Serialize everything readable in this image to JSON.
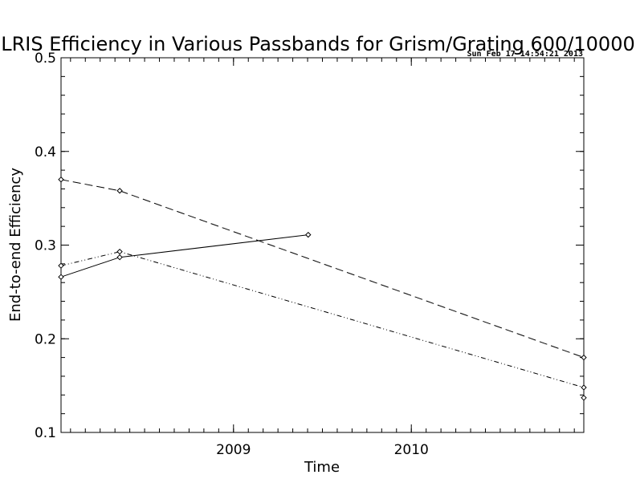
{
  "chart_data": {
    "type": "line",
    "title": "LRIS Efficiency in Various Passbands for Grism/Grating 600/10000",
    "timestamp": "Sun Feb 17 14:54:21 2013",
    "xlabel": "Time",
    "ylabel": "End-to-end Efficiency",
    "xlim": [
      2008.03,
      2010.97
    ],
    "ylim": [
      0.1,
      0.5
    ],
    "x_ticks": [
      2009,
      2010
    ],
    "y_ticks": [
      0.1,
      0.2,
      0.3,
      0.4,
      0.5
    ],
    "y_tick_labels": [
      "0.1",
      "0.2",
      "0.3",
      "0.4",
      "0.5"
    ],
    "grid": false,
    "series": [
      {
        "line_style": "solid",
        "x": [
          2008.03,
          2008.36,
          2009.42
        ],
        "y": [
          0.266,
          0.287,
          0.311
        ]
      },
      {
        "line_style": "dashed",
        "x": [
          2008.03,
          2008.36,
          2010.97
        ],
        "y": [
          0.37,
          0.358,
          0.18
        ]
      },
      {
        "line_style": "dash-dot-dot",
        "x": [
          2008.03,
          2008.36,
          2010.97
        ],
        "y": [
          0.278,
          0.293,
          0.148
        ]
      },
      {
        "line_style": "none",
        "x": [
          2010.97
        ],
        "y": [
          0.137
        ]
      }
    ]
  }
}
